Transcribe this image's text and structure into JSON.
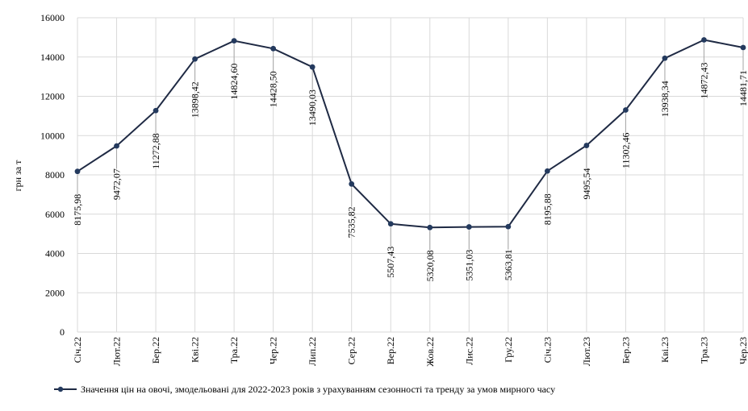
{
  "chart_data": {
    "type": "line",
    "title": "",
    "xlabel": "",
    "ylabel": "грн за т",
    "ylim": [
      0,
      16000
    ],
    "yticks": [
      "0",
      "2000",
      "4000",
      "6000",
      "8000",
      "10000",
      "12000",
      "14000",
      "16000"
    ],
    "grid": true,
    "legend_position": "bottom",
    "categories": [
      "Січ.22",
      "Лют.22",
      "Бер.22",
      "Кві.22",
      "Тра.22",
      "Чер.22",
      "Лип.22",
      "Сер.22",
      "Вер.22",
      "Жов.22",
      "Лис.22",
      "Гру.22",
      "Січ.23",
      "Лют.23",
      "Бер.23",
      "Кві.23",
      "Тра.23",
      "Чер.23"
    ],
    "series": [
      {
        "name": "Значення цін на овочі, змодельовані для 2022-2023 років з урахуванням сезонності та тренду за умов мирного часу",
        "values": [
          8175.98,
          9472.07,
          11272.88,
          13898.42,
          14824.6,
          14428.5,
          13490.03,
          7535.82,
          5507.43,
          5320.08,
          5351.03,
          5363.81,
          8195.88,
          9495.54,
          11302.46,
          13938.34,
          14872.43,
          14481.71
        ],
        "data_labels": [
          "8175,98",
          "9472,07",
          "11272,88",
          "13898,42",
          "14824,60",
          "14428,50",
          "13490,03",
          "7535,82",
          "5507,43",
          "5320,08",
          "5351,03",
          "5363,81",
          "8195,88",
          "9495,54",
          "11302,46",
          "13938,34",
          "14872,43",
          "14481,71"
        ],
        "color": "#1f2a44"
      }
    ]
  }
}
